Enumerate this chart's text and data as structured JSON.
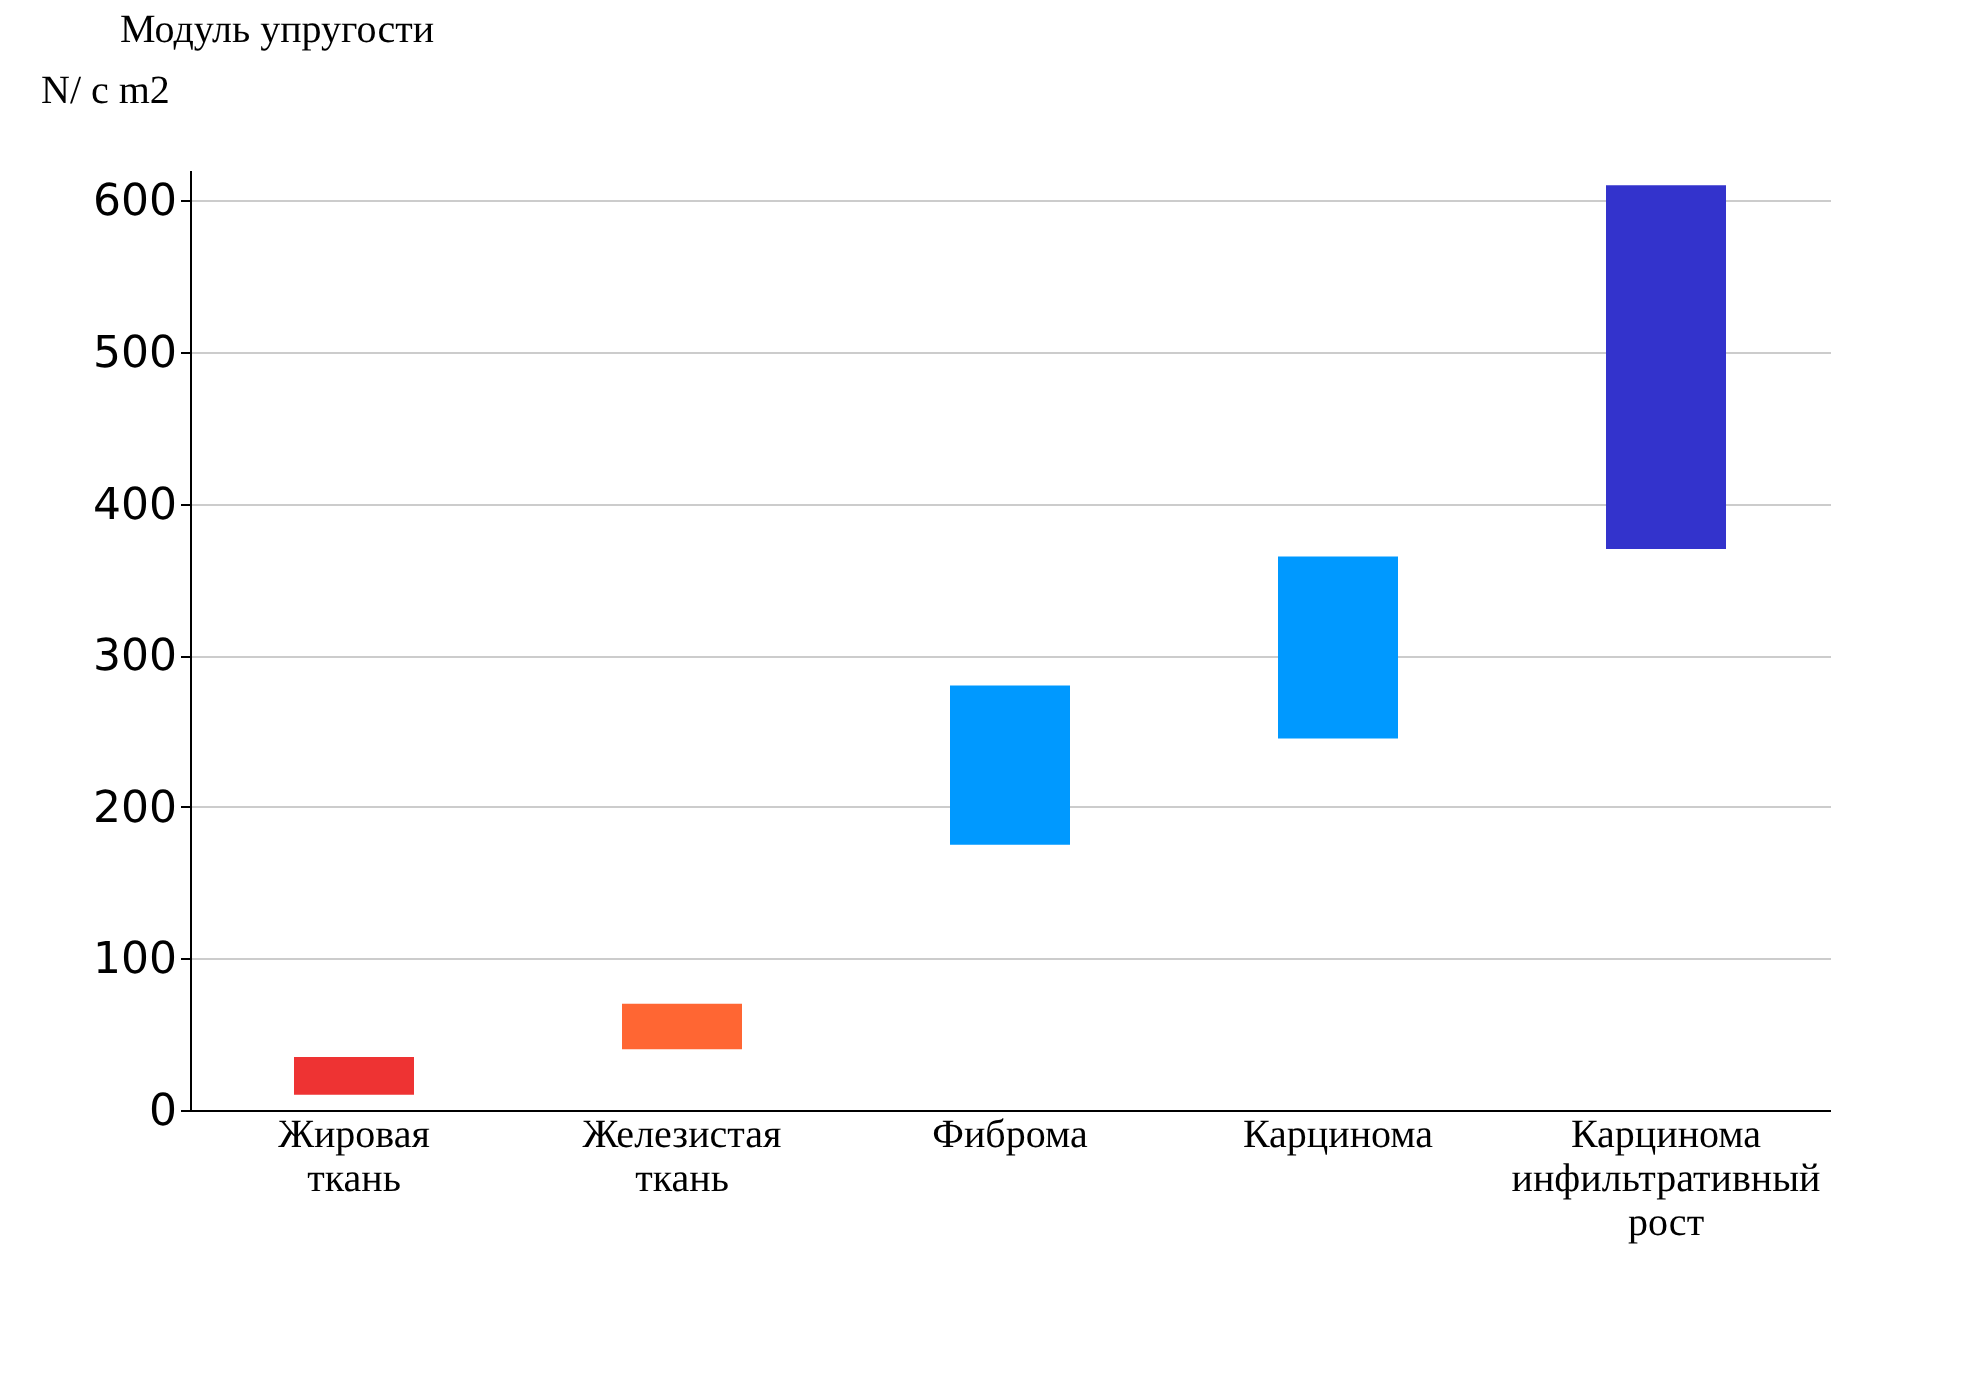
{
  "chart_data": {
    "type": "bar",
    "title": "Модуль упругости",
    "ylabel": "N/ c m2",
    "categories": [
      "Жировая ткань",
      "Железистая ткань",
      "Фиброма",
      "Карцинома",
      "Карцинома инфильтративный рост"
    ],
    "base": [
      10,
      40,
      175,
      245,
      370
    ],
    "values": [
      25,
      30,
      105,
      120,
      240
    ],
    "colors": [
      "#ee3333",
      "#ff6633",
      "#0099ff",
      "#0099ff",
      "#3333cc"
    ],
    "ylim": [
      0,
      620
    ],
    "yticks": [
      0,
      100,
      200,
      300,
      400,
      500,
      600
    ],
    "grid": "y"
  }
}
